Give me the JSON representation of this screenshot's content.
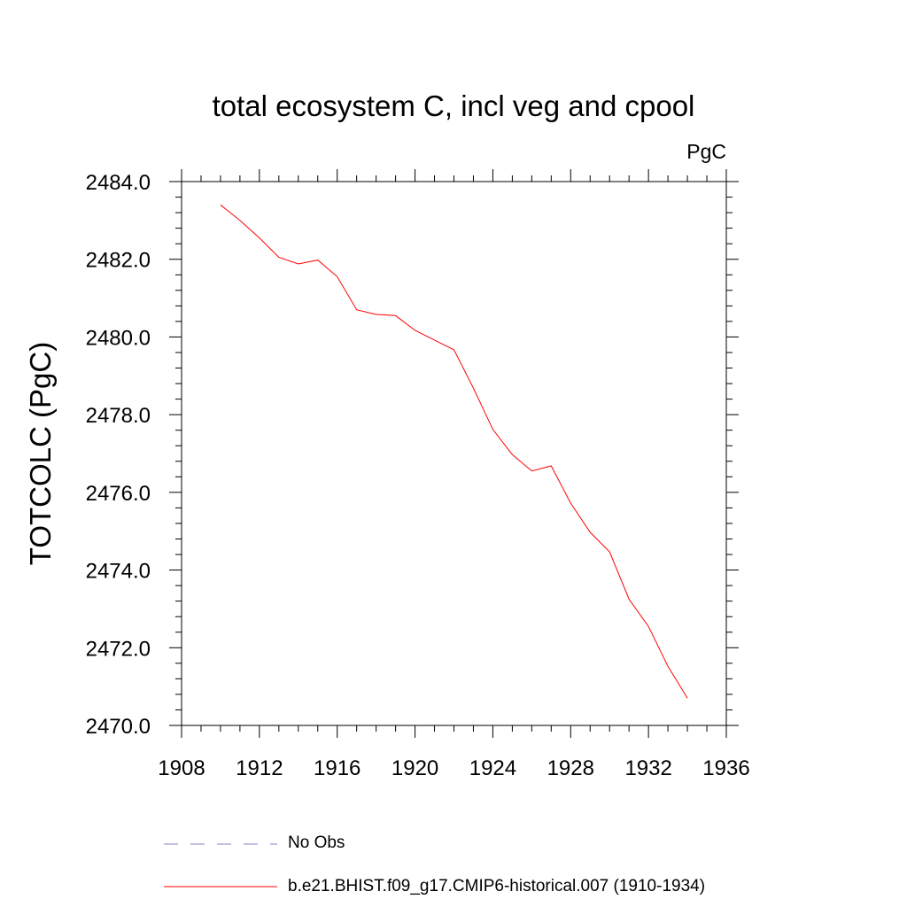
{
  "chart_data": {
    "type": "line",
    "title": "total ecosystem C, incl veg and cpool",
    "units": "PgC",
    "xlabel": "",
    "ylabel": "TOTCOLC  (PgC)",
    "xlim": [
      1908,
      1936
    ],
    "ylim": [
      2470.0,
      2484.0
    ],
    "x_ticks": [
      "1908",
      "1912",
      "1916",
      "1920",
      "1924",
      "1928",
      "1932",
      "1936"
    ],
    "y_ticks": [
      "2470.0",
      "2472.0",
      "2474.0",
      "2476.0",
      "2478.0",
      "2480.0",
      "2482.0",
      "2484.0"
    ],
    "grid": false,
    "legend_position": "bottom",
    "series": [
      {
        "name": "b.e21.BHIST.f09_g17.CMIP6-historical.007 (1910-1934)",
        "color": "#ff0000",
        "style": "solid",
        "x": [
          1910,
          1911,
          1912,
          1913,
          1914,
          1915,
          1916,
          1917,
          1918,
          1919,
          1920,
          1921,
          1922,
          1923,
          1924,
          1925,
          1926,
          1927,
          1928,
          1929,
          1930,
          1931,
          1932,
          1933,
          1934
        ],
        "y": [
          2483.4,
          2483.0,
          2482.55,
          2482.05,
          2481.88,
          2481.98,
          2481.55,
          2480.7,
          2480.58,
          2480.55,
          2480.17,
          2479.92,
          2479.67,
          2478.68,
          2477.62,
          2476.97,
          2476.55,
          2476.68,
          2475.72,
          2474.97,
          2474.47,
          2473.25,
          2472.55,
          2471.52,
          2470.7
        ]
      },
      {
        "name": "No Obs",
        "color": "#8080c0",
        "style": "dashed",
        "x": [],
        "y": []
      }
    ]
  }
}
